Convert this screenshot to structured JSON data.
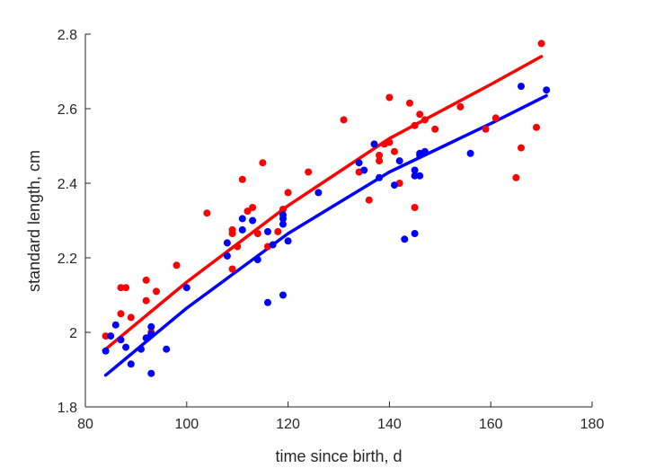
{
  "chart_data": {
    "type": "scatter",
    "title": "",
    "xlabel": "time since birth, d",
    "ylabel": "standard length, cm",
    "xlim": [
      80,
      180
    ],
    "ylim": [
      1.8,
      2.8
    ],
    "xticks": [
      80,
      100,
      120,
      140,
      160,
      180
    ],
    "yticks": [
      1.8,
      2,
      2.2,
      2.4,
      2.6,
      2.8
    ],
    "ytick_labels": [
      "1.8",
      "2",
      "2.2",
      "2.4",
      "2.6",
      "2.8"
    ],
    "grid": false,
    "legend": "none",
    "series": [
      {
        "color": "#ff0000",
        "points": [
          [
            84,
            1.99
          ],
          [
            87,
            2.12
          ],
          [
            87,
            2.05
          ],
          [
            88,
            2.12
          ],
          [
            89,
            2.04
          ],
          [
            92,
            2.14
          ],
          [
            92,
            2.085
          ],
          [
            93,
            2.0
          ],
          [
            94,
            2.11
          ],
          [
            98,
            2.18
          ],
          [
            104,
            2.32
          ],
          [
            109,
            2.275
          ],
          [
            109,
            2.265
          ],
          [
            109,
            2.17
          ],
          [
            110,
            2.23
          ],
          [
            111,
            2.41
          ],
          [
            112,
            2.325
          ],
          [
            113,
            2.335
          ],
          [
            114,
            2.265
          ],
          [
            115,
            2.455
          ],
          [
            116,
            2.23
          ],
          [
            118,
            2.27
          ],
          [
            119,
            2.33
          ],
          [
            120,
            2.375
          ],
          [
            124,
            2.43
          ],
          [
            131,
            2.57
          ],
          [
            134,
            2.43
          ],
          [
            136,
            2.355
          ],
          [
            138,
            2.475
          ],
          [
            138,
            2.46
          ],
          [
            139,
            2.505
          ],
          [
            140,
            2.51
          ],
          [
            140,
            2.63
          ],
          [
            141,
            2.485
          ],
          [
            142,
            2.4
          ],
          [
            144,
            2.615
          ],
          [
            145,
            2.555
          ],
          [
            145,
            2.335
          ],
          [
            146,
            2.585
          ],
          [
            147,
            2.57
          ],
          [
            149,
            2.545
          ],
          [
            154,
            2.605
          ],
          [
            159,
            2.545
          ],
          [
            161,
            2.575
          ],
          [
            165,
            2.415
          ],
          [
            166,
            2.495
          ],
          [
            169,
            2.55
          ],
          [
            170,
            2.775
          ]
        ],
        "fit": [
          [
            84,
            1.955
          ],
          [
            100,
            2.135
          ],
          [
            120,
            2.34
          ],
          [
            140,
            2.52
          ],
          [
            160,
            2.665
          ],
          [
            170,
            2.74
          ]
        ]
      },
      {
        "color": "#0000ff",
        "points": [
          [
            84,
            1.95
          ],
          [
            85,
            1.99
          ],
          [
            86,
            2.02
          ],
          [
            87,
            1.98
          ],
          [
            88,
            1.96
          ],
          [
            89,
            1.915
          ],
          [
            91,
            1.955
          ],
          [
            92,
            1.985
          ],
          [
            93,
            2.015
          ],
          [
            93,
            1.995
          ],
          [
            93,
            1.89
          ],
          [
            96,
            1.955
          ],
          [
            100,
            2.12
          ],
          [
            108,
            2.24
          ],
          [
            108,
            2.205
          ],
          [
            111,
            2.305
          ],
          [
            111,
            2.275
          ],
          [
            113,
            2.3
          ],
          [
            114,
            2.195
          ],
          [
            116,
            2.27
          ],
          [
            116,
            2.08
          ],
          [
            117,
            2.235
          ],
          [
            119,
            2.315
          ],
          [
            119,
            2.305
          ],
          [
            119,
            2.29
          ],
          [
            119,
            2.1
          ],
          [
            120,
            2.245
          ],
          [
            126,
            2.375
          ],
          [
            134,
            2.455
          ],
          [
            135,
            2.435
          ],
          [
            137,
            2.505
          ],
          [
            138,
            2.415
          ],
          [
            141,
            2.395
          ],
          [
            142,
            2.46
          ],
          [
            143,
            2.25
          ],
          [
            145,
            2.435
          ],
          [
            145,
            2.42
          ],
          [
            145,
            2.265
          ],
          [
            146,
            2.48
          ],
          [
            146,
            2.475
          ],
          [
            146,
            2.42
          ],
          [
            147,
            2.485
          ],
          [
            156,
            2.48
          ],
          [
            166,
            2.66
          ],
          [
            171,
            2.65
          ]
        ],
        "fit": [
          [
            84,
            1.885
          ],
          [
            100,
            2.065
          ],
          [
            120,
            2.265
          ],
          [
            140,
            2.43
          ],
          [
            160,
            2.56
          ],
          [
            171,
            2.635
          ]
        ]
      }
    ]
  }
}
